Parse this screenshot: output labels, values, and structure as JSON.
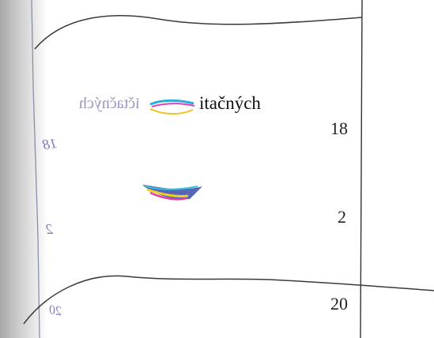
{
  "cell": {
    "word": "tačných",
    "word_prefix": "i",
    "mirror_word": "ičtačných"
  },
  "numbers": {
    "n1": "18",
    "n2": "2",
    "n3": "20"
  },
  "bleed_through": {
    "b1": "18",
    "b2": "2",
    "b3": "20"
  },
  "colors": {
    "ink": "#111111",
    "rule": "#333333",
    "bleed": "#6a5fb8"
  }
}
